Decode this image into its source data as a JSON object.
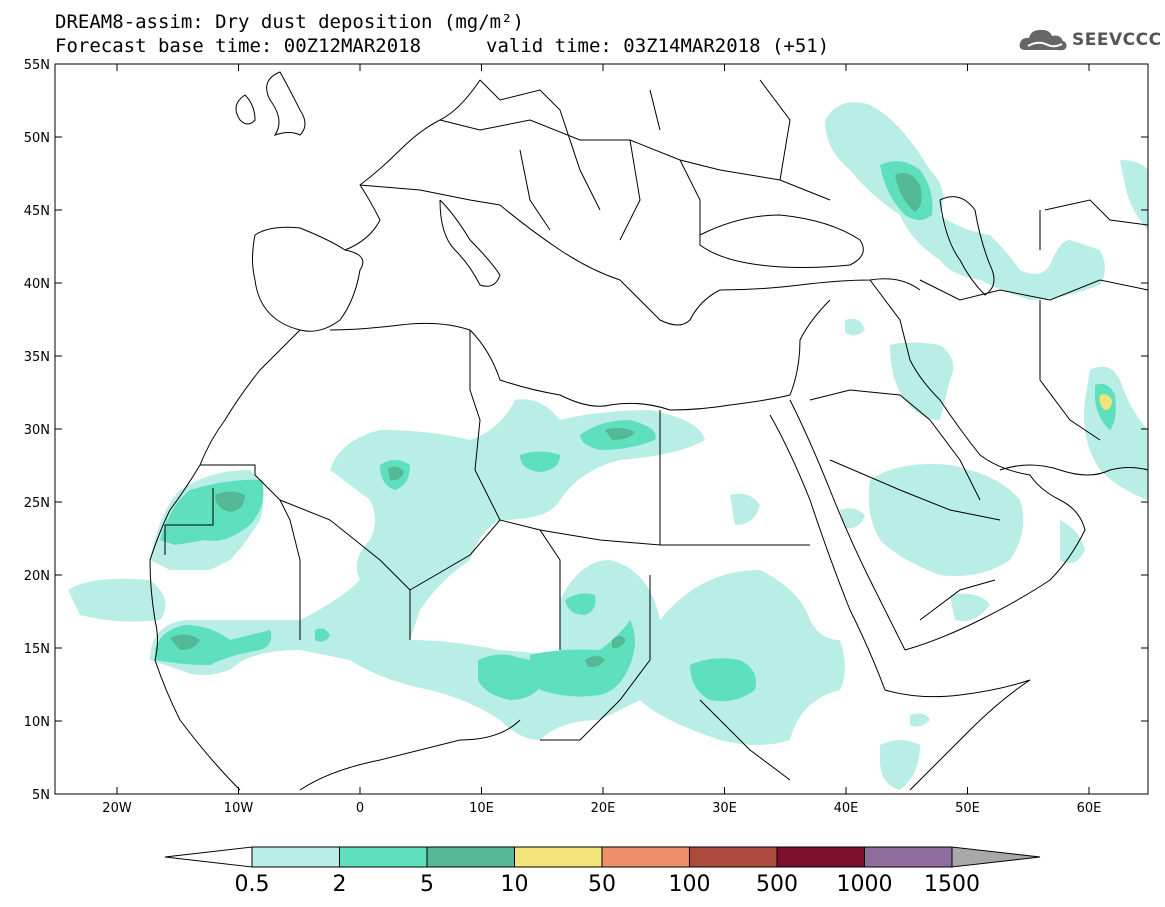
{
  "header": {
    "title_line1": "DREAM8-assim: Dry dust deposition (mg/m²)",
    "title_line2_left": "Forecast base time: 00Z12MAR2018",
    "title_line2_right": "valid time: 03Z14MAR2018 (+51)"
  },
  "logo": {
    "text": "SEEVCCC",
    "icon": "cloud-icon"
  },
  "map": {
    "lat_labels": [
      "55N",
      "50N",
      "45N",
      "40N",
      "35N",
      "30N",
      "25N",
      "20N",
      "15N",
      "10N",
      "5N"
    ],
    "lon_labels": [
      "20W",
      "10W",
      "0",
      "10E",
      "20E",
      "30E",
      "40E",
      "50E",
      "60E"
    ],
    "colors": {
      "level_0_5": "#b9eee6",
      "level_2": "#5fe0bd",
      "level_5": "#55b896",
      "level_10": "#f3e47a",
      "borders": "#000000"
    }
  },
  "colorbar": {
    "labels": [
      "0.5",
      "2",
      "5",
      "10",
      "50",
      "100",
      "500",
      "1000",
      "1500"
    ],
    "colors": [
      "#b9eee6",
      "#5fe0bd",
      "#55b896",
      "#f3e47a",
      "#ec8d6c",
      "#ab4a3d",
      "#7c0f2b",
      "#8f6d9e",
      "#a8a8a8"
    ]
  }
}
